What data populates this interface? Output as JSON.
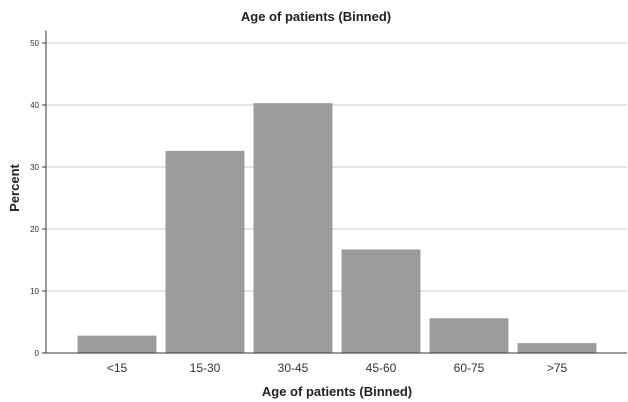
{
  "chart_data": {
    "type": "bar",
    "title": "Age of patients (Binned)",
    "xlabel": "Age of patients (Binned)",
    "ylabel": "Percent",
    "categories": [
      "<15",
      "15-30",
      "30-45",
      "45-60",
      "60-75",
      ">75"
    ],
    "values": [
      2.8,
      32.6,
      40.3,
      16.7,
      5.6,
      1.6
    ],
    "ylim": [
      0,
      52
    ],
    "yticks": [
      "0",
      "10",
      "20",
      "30",
      "40",
      "50"
    ],
    "grid": true,
    "legend": "none",
    "colors": {
      "bar": "#9b9c9e",
      "grid": "#c8c8c8",
      "axis": "#333333"
    }
  }
}
